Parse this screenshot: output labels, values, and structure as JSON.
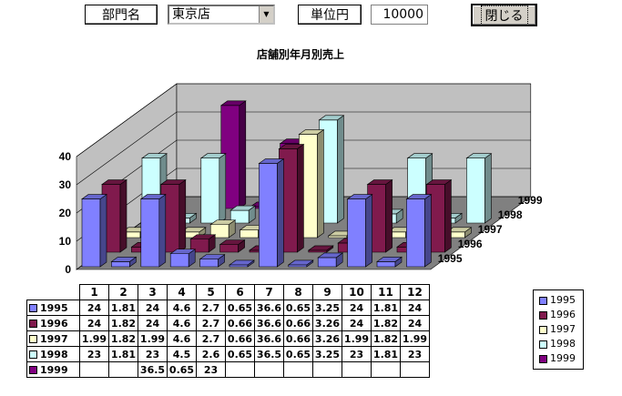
{
  "header": {
    "dept_label": "部門名",
    "store_value": "東京店",
    "unit_label": "単位円",
    "unit_value": "10000",
    "close_label": "閉じる"
  },
  "chart_data": {
    "type": "bar",
    "title": "店舗別年月別売上",
    "categories": [
      "1",
      "2",
      "3",
      "4",
      "5",
      "6",
      "7",
      "8",
      "9",
      "10",
      "11",
      "12"
    ],
    "ylim": [
      0,
      40
    ],
    "yticks": [
      0,
      10,
      20,
      30,
      40
    ],
    "series": [
      {
        "name": "1995",
        "color": "#8080ff",
        "values": [
          24,
          1.81,
          24,
          4.6,
          2.7,
          0.65,
          36.6,
          0.65,
          3.25,
          24,
          1.81,
          24
        ]
      },
      {
        "name": "1996",
        "color": "#801a4d",
        "values": [
          24,
          1.82,
          24,
          4.6,
          2.7,
          0.66,
          36.6,
          0.66,
          3.26,
          24,
          1.82,
          24
        ]
      },
      {
        "name": "1997",
        "color": "#ffffcc",
        "values": [
          1.99,
          1.82,
          1.99,
          4.6,
          2.7,
          0.66,
          36.6,
          0.66,
          3.26,
          1.99,
          1.82,
          1.99
        ]
      },
      {
        "name": "1998",
        "color": "#ccffff",
        "values": [
          23,
          1.81,
          23,
          4.5,
          2.6,
          0.65,
          36.5,
          0.65,
          3.25,
          23,
          1.81,
          23
        ]
      },
      {
        "name": "1999",
        "color": "#800080",
        "values": [
          null,
          null,
          36.5,
          0.65,
          23,
          null,
          null,
          null,
          null,
          null,
          null,
          null
        ]
      }
    ],
    "table": [
      [
        "24",
        "1.81",
        "24",
        "4.6",
        "2.7",
        "0.65",
        "36.6",
        "0.65",
        "3.25",
        "24",
        "1.81",
        "24"
      ],
      [
        "24",
        "1.82",
        "24",
        "4.6",
        "2.7",
        "0.66",
        "36.6",
        "0.66",
        "3.26",
        "24",
        "1.82",
        "24"
      ],
      [
        "1.99",
        "1.82",
        "1.99",
        "4.6",
        "2.7",
        "0.66",
        "36.6",
        "0.66",
        "3.26",
        "1.99",
        "1.82",
        "1.99"
      ],
      [
        "23",
        "1.81",
        "23",
        "4.5",
        "2.6",
        "0.65",
        "36.5",
        "0.65",
        "3.25",
        "23",
        "1.81",
        "23"
      ],
      [
        "",
        "",
        "36.5",
        "0.65",
        "23",
        "",
        "",
        "",
        "",
        "",
        "",
        ""
      ]
    ],
    "legend_position": "right",
    "grid": true
  }
}
